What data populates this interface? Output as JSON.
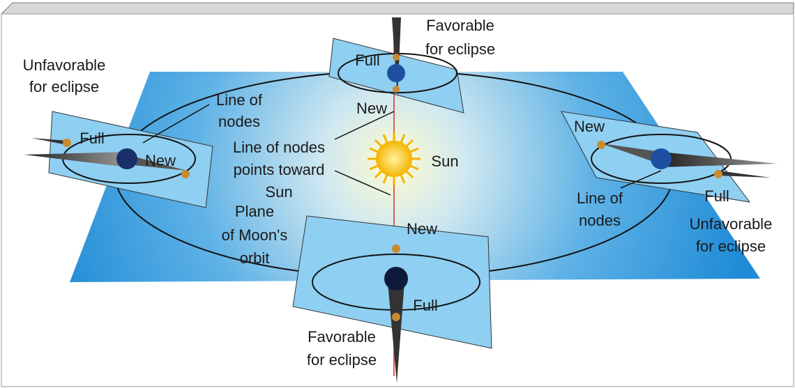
{
  "labels": {
    "favorable_top": [
      "Favorable",
      "for eclipse"
    ],
    "unfavorable_left": [
      "Unfavorable",
      "for eclipse"
    ],
    "line_of_nodes_left": [
      "Line of",
      "nodes"
    ],
    "full_top": [
      "Full"
    ],
    "full_left": [
      "Full"
    ],
    "new_left": [
      "New"
    ],
    "new_top": [
      "New"
    ],
    "line_of_nodes_sun": [
      "Line of nodes",
      "points toward",
      "Sun"
    ],
    "sun": [
      "Sun"
    ],
    "new_right": [
      "New"
    ],
    "line_of_nodes_right": [
      "Line of",
      "nodes"
    ],
    "full_right": [
      "Full"
    ],
    "unfavorable_right": [
      "Unfavorable",
      "for eclipse"
    ],
    "plane_of_moons_orbit": [
      "Plane",
      "of Moon's",
      "orbit"
    ],
    "new_bottom": [
      "New"
    ],
    "full_bottom": [
      "Full"
    ],
    "favorable_bottom": [
      "Favorable",
      "for eclipse"
    ]
  }
}
